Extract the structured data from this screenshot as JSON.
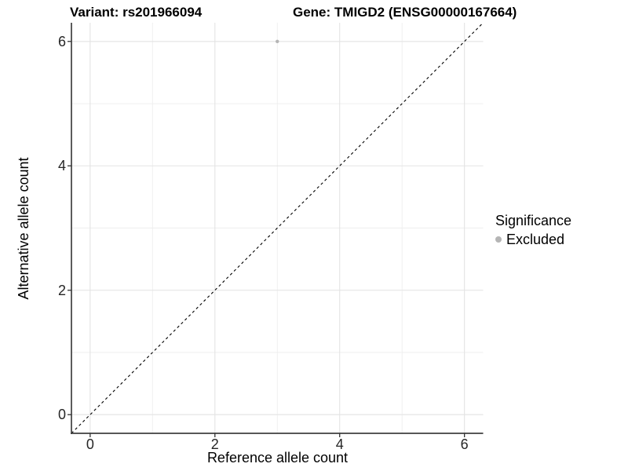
{
  "header": {
    "variant_title": "Variant: rs201966094",
    "gene_title": "Gene: TMIGD2 (ENSG00000167664)"
  },
  "colors": {
    "grid_major": "#e3e3e3",
    "grid_minor": "#eeeeee",
    "axis_line": "#3f3f3f",
    "tick_mark": "#333333",
    "reference_line": "#000000",
    "excluded_point": "#b5b5b5",
    "text": "#000000"
  },
  "chart_data": {
    "type": "scatter",
    "titles": [
      "Variant: rs201966094",
      "Gene: TMIGD2 (ENSG00000167664)"
    ],
    "xlabel": "Reference allele count",
    "ylabel": "Alternative allele count",
    "xlim": [
      -0.3,
      6.3
    ],
    "ylim": [
      -0.3,
      6.3
    ],
    "x_ticks": [
      0,
      2,
      4,
      6
    ],
    "y_ticks": [
      0,
      2,
      4,
      6
    ],
    "x_minor_ticks": [
      1,
      3,
      5
    ],
    "y_minor_ticks": [
      1,
      3,
      5
    ],
    "grid": true,
    "legend": {
      "title": "Significance",
      "position": "right",
      "items": [
        {
          "label": "Excluded",
          "color": "#b5b5b5"
        }
      ]
    },
    "series": [
      {
        "name": "Excluded",
        "color": "#b5b5b5",
        "points": [
          {
            "x": 3,
            "y": 6
          }
        ],
        "point_radius": 2.2
      }
    ],
    "reference_line": {
      "slope": 1,
      "intercept": 0,
      "style": "dashed",
      "color": "#000000"
    }
  }
}
